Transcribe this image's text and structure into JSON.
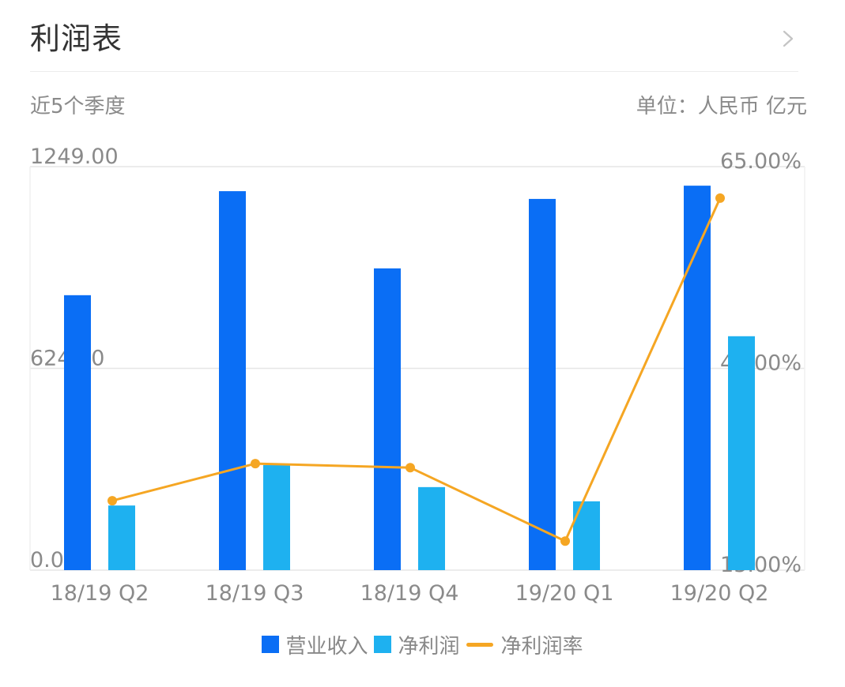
{
  "header": {
    "title": "利润表",
    "chevron_icon": "chevron-right-icon"
  },
  "subheader": {
    "period": "近5个季度",
    "unit": "单位：人民币 亿元"
  },
  "colors": {
    "revenue": "#0A6EF5",
    "net_profit": "#1EB1F0",
    "net_margin": "#F5A623",
    "axis_text": "#8a8a8a",
    "grid": "#e6e6e6"
  },
  "legend": {
    "items": [
      {
        "label": "营业收入",
        "type": "square",
        "color": "#0A6EF5"
      },
      {
        "label": "净利润",
        "type": "square",
        "color": "#1EB1F0"
      },
      {
        "label": "净利润率",
        "type": "line",
        "color": "#F5A623"
      }
    ]
  },
  "chart_data": {
    "type": "bar",
    "title": "利润表",
    "subtitle": "近5个季度",
    "unit": "人民币 亿元",
    "categories": [
      "18/19 Q2",
      "18/19 Q3",
      "18/19 Q4",
      "19/20 Q1",
      "19/20 Q2"
    ],
    "series": [
      {
        "name": "营业收入",
        "type": "bar",
        "axis": "left",
        "color": "#0A6EF5",
        "values": [
          851,
          1173,
          934,
          1149,
          1190
        ]
      },
      {
        "name": "净利润",
        "type": "bar",
        "axis": "left",
        "color": "#1EB1F0",
        "values": [
          200,
          325,
          257,
          213,
          724
        ]
      },
      {
        "name": "净利润率",
        "type": "line",
        "axis": "right",
        "color": "#F5A623",
        "values": [
          23.6,
          28.2,
          27.7,
          18.6,
          61.1
        ],
        "unit": "%"
      }
    ],
    "y_left": {
      "ticks": [
        "0.00",
        "624.00",
        "1249.00"
      ],
      "range": [
        0,
        1249
      ]
    },
    "y_right": {
      "ticks": [
        "15.00%",
        "40.00%",
        "65.00%"
      ],
      "range": [
        15,
        65
      ]
    },
    "grid": true,
    "legend_position": "bottom"
  }
}
